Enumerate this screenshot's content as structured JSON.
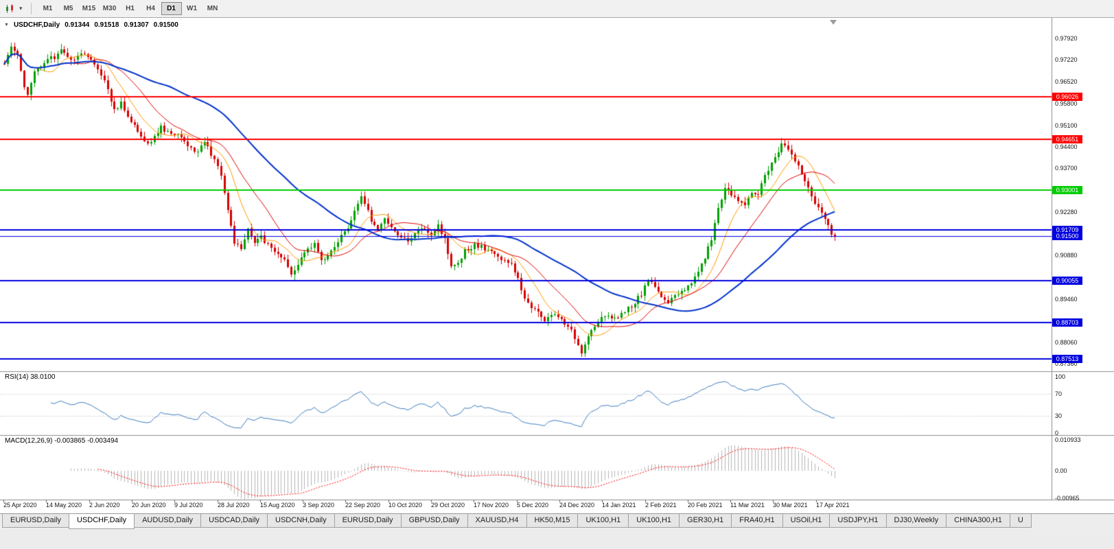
{
  "toolbar": {
    "timeframes": [
      {
        "label": "M1",
        "active": false
      },
      {
        "label": "M5",
        "active": false
      },
      {
        "label": "M15",
        "active": false
      },
      {
        "label": "M30",
        "active": false
      },
      {
        "label": "H1",
        "active": false
      },
      {
        "label": "H4",
        "active": false
      },
      {
        "label": "D1",
        "active": true
      },
      {
        "label": "W1",
        "active": false
      },
      {
        "label": "MN",
        "active": false
      }
    ]
  },
  "chart_header": {
    "symbol": "USDCHF,Daily",
    "open": "0.91344",
    "high": "0.91518",
    "low": "0.91307",
    "close": "0.91500"
  },
  "chart_data": {
    "type": "candlestick",
    "title": "USDCHF,Daily",
    "up_color": "#00A000",
    "down_color": "#D80000",
    "price_axis_range": [
      0.87136,
      0.98499
    ],
    "y_axis_labels": [
      "0.97920",
      "0.97220",
      "0.96520",
      "0.95800",
      "0.95100",
      "0.94400",
      "0.93700",
      "0.92280",
      "0.90880",
      "0.89460",
      "0.88060",
      "0.87360"
    ],
    "x_labels": [
      "25 Apr 2020",
      "14 May 2020",
      "2 Jun 2020",
      "20 Jun 2020",
      "9 Jul 2020",
      "28 Jul 2020",
      "15 Aug 2020",
      "3 Sep 2020",
      "22 Sep 2020",
      "10 Oct 2020",
      "29 Oct 2020",
      "17 Nov 2020",
      "5 Dec 2020",
      "24 Dec 2020",
      "14 Jan 2021",
      "2 Feb 2021",
      "20 Feb 2021",
      "11 Mar 2021",
      "30 Mar 2021",
      "17 Apr 2021"
    ],
    "horizontal_levels": [
      {
        "price": 0.96026,
        "label": "0.96026",
        "color": "#FF0000",
        "width": 2,
        "current": false
      },
      {
        "price": 0.94651,
        "label": "0.94651",
        "color": "#FF0000",
        "width": 2,
        "current": false
      },
      {
        "price": 0.93001,
        "label": "0.93001",
        "color": "#00CC00",
        "width": 2,
        "current": false
      },
      {
        "price": 0.91709,
        "label": "0.91709",
        "color": "#0000E0",
        "width": 2,
        "current": false
      },
      {
        "price": 0.915,
        "label": "0.91500",
        "color": "#0000E0",
        "width": 1,
        "current": true
      },
      {
        "price": 0.90055,
        "label": "0.90055",
        "color": "#0000E0",
        "width": 2,
        "current": false
      },
      {
        "price": 0.88703,
        "label": "0.88703",
        "color": "#0000E0",
        "width": 2,
        "current": false
      },
      {
        "price": 0.87513,
        "label": "0.87513",
        "color": "#0000E0",
        "width": 2,
        "current": false
      }
    ],
    "moving_averages": [
      {
        "period": 10,
        "color": "#FF9900",
        "width": 1
      },
      {
        "period": 20,
        "color": "#E00000",
        "width": 1
      },
      {
        "period": 50,
        "color": "#0033CC",
        "width": 2
      }
    ],
    "candle_count": 250,
    "close_waypoints": [
      [
        0,
        0.971
      ],
      [
        2,
        0.9772
      ],
      [
        4,
        0.9745
      ],
      [
        6,
        0.9638
      ],
      [
        7,
        0.9608
      ],
      [
        9,
        0.9688
      ],
      [
        12,
        0.9718
      ],
      [
        15,
        0.9732
      ],
      [
        17,
        0.9756
      ],
      [
        20,
        0.9722
      ],
      [
        23,
        0.9744
      ],
      [
        26,
        0.972
      ],
      [
        29,
        0.9678
      ],
      [
        31,
        0.9625
      ],
      [
        33,
        0.9558
      ],
      [
        35,
        0.9585
      ],
      [
        38,
        0.952
      ],
      [
        41,
        0.9478
      ],
      [
        43,
        0.9445
      ],
      [
        45,
        0.9475
      ],
      [
        47,
        0.9502
      ],
      [
        50,
        0.9482
      ],
      [
        53,
        0.947
      ],
      [
        55,
        0.9446
      ],
      [
        58,
        0.942
      ],
      [
        60,
        0.9455
      ],
      [
        63,
        0.94
      ],
      [
        65,
        0.934
      ],
      [
        67,
        0.924
      ],
      [
        69,
        0.9132
      ],
      [
        71,
        0.9108
      ],
      [
        73,
        0.918
      ],
      [
        75,
        0.9128
      ],
      [
        77,
        0.9146
      ],
      [
        79,
        0.9118
      ],
      [
        81,
        0.91
      ],
      [
        84,
        0.9068
      ],
      [
        86,
        0.9028
      ],
      [
        88,
        0.9058
      ],
      [
        90,
        0.9092
      ],
      [
        93,
        0.9126
      ],
      [
        95,
        0.9068
      ],
      [
        97,
        0.909
      ],
      [
        100,
        0.9136
      ],
      [
        103,
        0.918
      ],
      [
        105,
        0.9232
      ],
      [
        107,
        0.9278
      ],
      [
        108,
        0.9252
      ],
      [
        110,
        0.9205
      ],
      [
        112,
        0.9168
      ],
      [
        114,
        0.92
      ],
      [
        116,
        0.9186
      ],
      [
        118,
        0.9154
      ],
      [
        121,
        0.914
      ],
      [
        124,
        0.9166
      ],
      [
        126,
        0.918
      ],
      [
        128,
        0.9154
      ],
      [
        130,
        0.918
      ],
      [
        132,
        0.9138
      ],
      [
        134,
        0.9052
      ],
      [
        136,
        0.9066
      ],
      [
        138,
        0.91
      ],
      [
        141,
        0.9122
      ],
      [
        143,
        0.9114
      ],
      [
        146,
        0.91
      ],
      [
        149,
        0.9074
      ],
      [
        152,
        0.9058
      ],
      [
        154,
        0.9008
      ],
      [
        156,
        0.8948
      ],
      [
        158,
        0.8916
      ],
      [
        160,
        0.89
      ],
      [
        162,
        0.8868
      ],
      [
        164,
        0.8896
      ],
      [
        166,
        0.8884
      ],
      [
        168,
        0.887
      ],
      [
        170,
        0.8846
      ],
      [
        172,
        0.88
      ],
      [
        173,
        0.8776
      ],
      [
        175,
        0.8822
      ],
      [
        177,
        0.8862
      ],
      [
        179,
        0.8886
      ],
      [
        181,
        0.8896
      ],
      [
        183,
        0.888
      ],
      [
        186,
        0.8902
      ],
      [
        189,
        0.8936
      ],
      [
        191,
        0.8962
      ],
      [
        193,
        0.9002
      ],
      [
        195,
        0.8986
      ],
      [
        197,
        0.8946
      ],
      [
        199,
        0.893
      ],
      [
        201,
        0.8956
      ],
      [
        204,
        0.8976
      ],
      [
        206,
        0.899
      ],
      [
        208,
        0.904
      ],
      [
        210,
        0.9082
      ],
      [
        212,
        0.914
      ],
      [
        214,
        0.9242
      ],
      [
        216,
        0.9302
      ],
      [
        218,
        0.9286
      ],
      [
        220,
        0.927
      ],
      [
        222,
        0.9246
      ],
      [
        224,
        0.9296
      ],
      [
        226,
        0.929
      ],
      [
        228,
        0.9342
      ],
      [
        230,
        0.9392
      ],
      [
        232,
        0.9422
      ],
      [
        233,
        0.9446
      ],
      [
        235,
        0.9432
      ],
      [
        237,
        0.9396
      ],
      [
        239,
        0.9352
      ],
      [
        241,
        0.9306
      ],
      [
        243,
        0.9252
      ],
      [
        245,
        0.9226
      ],
      [
        247,
        0.9186
      ],
      [
        248,
        0.9162
      ],
      [
        249,
        0.915
      ]
    ],
    "indicators": [
      {
        "name": "RSI",
        "label": "RSI(14) 38.0100",
        "period": 14,
        "current_value": 38.01,
        "levels": [
          70,
          30
        ],
        "range": [
          0,
          100
        ],
        "scale_labels": [
          {
            "v": 100,
            "text": "100"
          },
          {
            "v": 70,
            "text": "70"
          },
          {
            "v": 30,
            "text": "30"
          },
          {
            "v": 0,
            "text": "0"
          }
        ],
        "line_color": "#3B7BBF"
      },
      {
        "name": "MACD",
        "label": "MACD(12,26,9) -0.003865 -0.003494",
        "fast": 12,
        "slow": 26,
        "signal": 9,
        "current_macd": -0.003865,
        "current_signal": -0.003494,
        "scale_range": [
          0.010933,
          -0.00965
        ],
        "scale_labels": [
          {
            "v": 0.010933,
            "text": "0.010933"
          },
          {
            "v": 0,
            "text": "0.00"
          },
          {
            "v": -0.00965,
            "text": "-0.00965"
          }
        ],
        "histogram_color": "#B4B4B4",
        "signal_color": "#FF0000"
      }
    ]
  },
  "tabs": [
    {
      "label": "EURUSD,Daily",
      "active": false
    },
    {
      "label": "USDCHF,Daily",
      "active": true
    },
    {
      "label": "AUDUSD,Daily",
      "active": false
    },
    {
      "label": "USDCAD,Daily",
      "active": false
    },
    {
      "label": "USDCNH,Daily",
      "active": false
    },
    {
      "label": "EURUSD,Daily",
      "active": false
    },
    {
      "label": "GBPUSD,Daily",
      "active": false
    },
    {
      "label": "XAUUSD,H4",
      "active": false
    },
    {
      "label": "HK50,M15",
      "active": false
    },
    {
      "label": "UK100,H1",
      "active": false
    },
    {
      "label": "UK100,H1",
      "active": false
    },
    {
      "label": "GER30,H1",
      "active": false
    },
    {
      "label": "FRA40,H1",
      "active": false
    },
    {
      "label": "USOil,H1",
      "active": false
    },
    {
      "label": "USDJPY,H1",
      "active": false
    },
    {
      "label": "DJ30,Weekly",
      "active": false
    },
    {
      "label": "CHINA300,H1",
      "active": false
    },
    {
      "label": "U",
      "active": false
    }
  ]
}
